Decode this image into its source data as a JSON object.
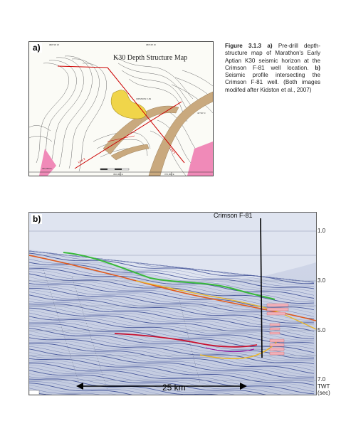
{
  "figure_a": {
    "label": "a)",
    "title": "K30 Depth Structure Map",
    "header_left": "080°30' W",
    "header_right": "059°45' W",
    "right_lat": "42°30' N",
    "line_label_1": "Line 1",
    "line_label_2": "Line 2",
    "well_tag": "CRIMSON F-81",
    "bottom_left": "336,000 E",
    "bottom_mid": "360,000 E",
    "bottom_right": "372,000 E"
  },
  "caption": {
    "figure_number": "Figure 3.1.3",
    "part_a": "a)",
    "text_a": "Pre-drill depth-structure map of Marathon's Early Aptian K30 seismic horizon at the Crimson F-81 well location.",
    "part_b": "b)",
    "text_b": "Seismic profile intersecting the Crimson F-81 well. (Both images modifed after Kidston et al., 2007)"
  },
  "figure_b": {
    "label": "b)",
    "well_name": "Crimson F-81",
    "scale_text": "25 km",
    "twt_ticks": [
      "1.0",
      "3.0",
      "5.0",
      "7.0"
    ],
    "axis_unit": "TWT",
    "axis_unit_sub": "(sec)"
  }
}
